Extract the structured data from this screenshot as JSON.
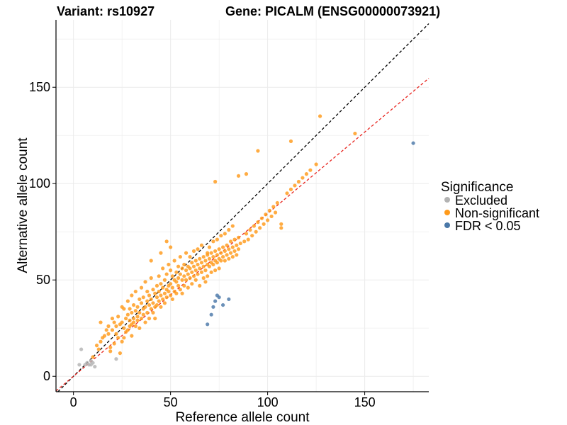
{
  "title_variant": "Variant: rs10927",
  "title_gene": "Gene: PICALM (ENSG00000073921)",
  "colors": {
    "excluded": "#b3b3b3",
    "nonsignificant": "#ff9a1a",
    "significant": "#4a78a8",
    "identity_line": "#000000",
    "fit_line": "#e8251f",
    "grid": "#ebebeb"
  },
  "chart_data": {
    "type": "scatter",
    "xlabel": "Reference allele count",
    "ylabel": "Alternative allele count",
    "xlim": [
      -9,
      183
    ],
    "ylim": [
      -8,
      185
    ],
    "x_ticks": [
      0,
      50,
      100,
      150
    ],
    "y_ticks": [
      0,
      50,
      100,
      150
    ],
    "grid": true,
    "legend": {
      "title": "Significance",
      "placement": "right",
      "entries": [
        "Excluded",
        "Non-significant",
        "FDR < 0.05"
      ]
    },
    "reference_lines": [
      {
        "name": "identity",
        "slope": 1.0,
        "intercept": 0,
        "style": "dashed",
        "color": "#000000"
      },
      {
        "name": "fit",
        "slope": 0.845,
        "intercept": 0,
        "style": "dashed",
        "color": "#e8251f"
      }
    ],
    "series": [
      {
        "name": "Excluded",
        "points": [
          [
            3,
            6
          ],
          [
            4,
            14
          ],
          [
            6,
            6
          ],
          [
            7,
            7
          ],
          [
            8,
            6
          ],
          [
            9,
            8
          ],
          [
            10,
            7
          ],
          [
            11,
            5
          ],
          [
            22,
            9
          ],
          [
            9,
            6
          ]
        ]
      },
      {
        "name": "FDR < 0.05",
        "points": [
          [
            69,
            27
          ],
          [
            71,
            32
          ],
          [
            72,
            36
          ],
          [
            73,
            39
          ],
          [
            74,
            42
          ],
          [
            75,
            41
          ],
          [
            77,
            37
          ],
          [
            80,
            40
          ],
          [
            175,
            121
          ]
        ]
      },
      {
        "name": "Non-significant",
        "points": [
          [
            10,
            10
          ],
          [
            12,
            16
          ],
          [
            13,
            14
          ],
          [
            14,
            18
          ],
          [
            14,
            28
          ],
          [
            15,
            20
          ],
          [
            16,
            21
          ],
          [
            17,
            24
          ],
          [
            18,
            22
          ],
          [
            18,
            26
          ],
          [
            19,
            15
          ],
          [
            19,
            13
          ],
          [
            20,
            24
          ],
          [
            20,
            30
          ],
          [
            21,
            17
          ],
          [
            21,
            28
          ],
          [
            22,
            22
          ],
          [
            22,
            26
          ],
          [
            23,
            20
          ],
          [
            23,
            31
          ],
          [
            24,
            27
          ],
          [
            24,
            12
          ],
          [
            25,
            28
          ],
          [
            25,
            36
          ],
          [
            25,
            18
          ],
          [
            26,
            25
          ],
          [
            26,
            35
          ],
          [
            26,
            20
          ],
          [
            27,
            30
          ],
          [
            27,
            23
          ],
          [
            28,
            24
          ],
          [
            28,
            32
          ],
          [
            28,
            39
          ],
          [
            29,
            29
          ],
          [
            29,
            35
          ],
          [
            29,
            26
          ],
          [
            30,
            33
          ],
          [
            30,
            27
          ],
          [
            30,
            21
          ],
          [
            30,
            42
          ],
          [
            31,
            28
          ],
          [
            31,
            37
          ],
          [
            31,
            30
          ],
          [
            32,
            26
          ],
          [
            32,
            34
          ],
          [
            32,
            44
          ],
          [
            33,
            29
          ],
          [
            33,
            36
          ],
          [
            33,
            31
          ],
          [
            34,
            40
          ],
          [
            34,
            33
          ],
          [
            34,
            25
          ],
          [
            35,
            38
          ],
          [
            35,
            30
          ],
          [
            35,
            46
          ],
          [
            36,
            35
          ],
          [
            36,
            32
          ],
          [
            36,
            41
          ],
          [
            37,
            36
          ],
          [
            37,
            28
          ],
          [
            37,
            49
          ],
          [
            38,
            39
          ],
          [
            38,
            33
          ],
          [
            38,
            44
          ],
          [
            39,
            37
          ],
          [
            39,
            42
          ],
          [
            39,
            30
          ],
          [
            40,
            40
          ],
          [
            40,
            35
          ],
          [
            40,
            51
          ],
          [
            41,
            38
          ],
          [
            41,
            45
          ],
          [
            41,
            33
          ],
          [
            42,
            43
          ],
          [
            42,
            36
          ],
          [
            42,
            30
          ],
          [
            43,
            41
          ],
          [
            43,
            47
          ],
          [
            43,
            37
          ],
          [
            44,
            44
          ],
          [
            44,
            39
          ],
          [
            44,
            52
          ],
          [
            45,
            42
          ],
          [
            45,
            48
          ],
          [
            45,
            36
          ],
          [
            46,
            46
          ],
          [
            46,
            40
          ],
          [
            46,
            56
          ],
          [
            47,
            43
          ],
          [
            47,
            50
          ],
          [
            47,
            38
          ],
          [
            48,
            45
          ],
          [
            48,
            53
          ],
          [
            48,
            41
          ],
          [
            49,
            47
          ],
          [
            49,
            44
          ],
          [
            49,
            58
          ],
          [
            50,
            48
          ],
          [
            50,
            42
          ],
          [
            50,
            55
          ],
          [
            51,
            46
          ],
          [
            51,
            52
          ],
          [
            51,
            40
          ],
          [
            52,
            50
          ],
          [
            52,
            44
          ],
          [
            52,
            60
          ],
          [
            53,
            49
          ],
          [
            53,
            54
          ],
          [
            53,
            43
          ],
          [
            54,
            51
          ],
          [
            54,
            47
          ],
          [
            54,
            57
          ],
          [
            55,
            53
          ],
          [
            55,
            45
          ],
          [
            55,
            62
          ],
          [
            56,
            50
          ],
          [
            56,
            56
          ],
          [
            56,
            43
          ],
          [
            57,
            52
          ],
          [
            57,
            58
          ],
          [
            57,
            47
          ],
          [
            58,
            55
          ],
          [
            58,
            50
          ],
          [
            58,
            64
          ],
          [
            59,
            53
          ],
          [
            59,
            57
          ],
          [
            59,
            46
          ],
          [
            60,
            56
          ],
          [
            60,
            51
          ],
          [
            60,
            62
          ],
          [
            61,
            54
          ],
          [
            61,
            59
          ],
          [
            61,
            48
          ],
          [
            62,
            57
          ],
          [
            62,
            52
          ],
          [
            62,
            65
          ],
          [
            63,
            55
          ],
          [
            63,
            60
          ],
          [
            63,
            50
          ],
          [
            64,
            58
          ],
          [
            64,
            53
          ],
          [
            64,
            66
          ],
          [
            65,
            56
          ],
          [
            65,
            61
          ],
          [
            65,
            47
          ],
          [
            66,
            59
          ],
          [
            66,
            54
          ],
          [
            66,
            68
          ],
          [
            67,
            57
          ],
          [
            67,
            62
          ],
          [
            67,
            51
          ],
          [
            68,
            60
          ],
          [
            68,
            55
          ],
          [
            68,
            49
          ],
          [
            69,
            58
          ],
          [
            69,
            63
          ],
          [
            69,
            52
          ],
          [
            70,
            61
          ],
          [
            70,
            57
          ],
          [
            70,
            67
          ],
          [
            71,
            59
          ],
          [
            71,
            64
          ],
          [
            71,
            54
          ],
          [
            72,
            62
          ],
          [
            72,
            58
          ],
          [
            72,
            70
          ],
          [
            73,
            60
          ],
          [
            73,
            65
          ],
          [
            73,
            55
          ],
          [
            74,
            63
          ],
          [
            74,
            59
          ],
          [
            74,
            71
          ],
          [
            75,
            61
          ],
          [
            75,
            66
          ],
          [
            75,
            56
          ],
          [
            76,
            64
          ],
          [
            76,
            60
          ],
          [
            76,
            73
          ],
          [
            77,
            62
          ],
          [
            77,
            67
          ],
          [
            78,
            65
          ],
          [
            78,
            60
          ],
          [
            78,
            74
          ],
          [
            79,
            63
          ],
          [
            79,
            68
          ],
          [
            80,
            66
          ],
          [
            80,
            61
          ],
          [
            80,
            76
          ],
          [
            81,
            64
          ],
          [
            81,
            70
          ],
          [
            82,
            67
          ],
          [
            82,
            62
          ],
          [
            82,
            78
          ],
          [
            83,
            65
          ],
          [
            83,
            71
          ],
          [
            84,
            68
          ],
          [
            84,
            63
          ],
          [
            85,
            66
          ],
          [
            85,
            72
          ],
          [
            86,
            69
          ],
          [
            88,
            70
          ],
          [
            89,
            74
          ],
          [
            90,
            71
          ],
          [
            91,
            76
          ],
          [
            92,
            73
          ],
          [
            93,
            78
          ],
          [
            94,
            75
          ],
          [
            95,
            80
          ],
          [
            96,
            77
          ],
          [
            97,
            82
          ],
          [
            98,
            79
          ],
          [
            99,
            84
          ],
          [
            100,
            81
          ],
          [
            101,
            86
          ],
          [
            102,
            83
          ],
          [
            103,
            88
          ],
          [
            104,
            85
          ],
          [
            105,
            90
          ],
          [
            107,
            79
          ],
          [
            107,
            77
          ],
          [
            110,
            95
          ],
          [
            112,
            97
          ],
          [
            114,
            99
          ],
          [
            116,
            101
          ],
          [
            118,
            103
          ],
          [
            120,
            105
          ],
          [
            122,
            107
          ],
          [
            125,
            110
          ],
          [
            145,
            126
          ],
          [
            127,
            135
          ],
          [
            112,
            122
          ],
          [
            95,
            117
          ],
          [
            73,
            101
          ],
          [
            85,
            104
          ],
          [
            89,
            105
          ],
          [
            50,
            67
          ],
          [
            48,
            70
          ],
          [
            45,
            64
          ],
          [
            40,
            60
          ],
          [
            69,
            64
          ]
        ]
      }
    ]
  }
}
